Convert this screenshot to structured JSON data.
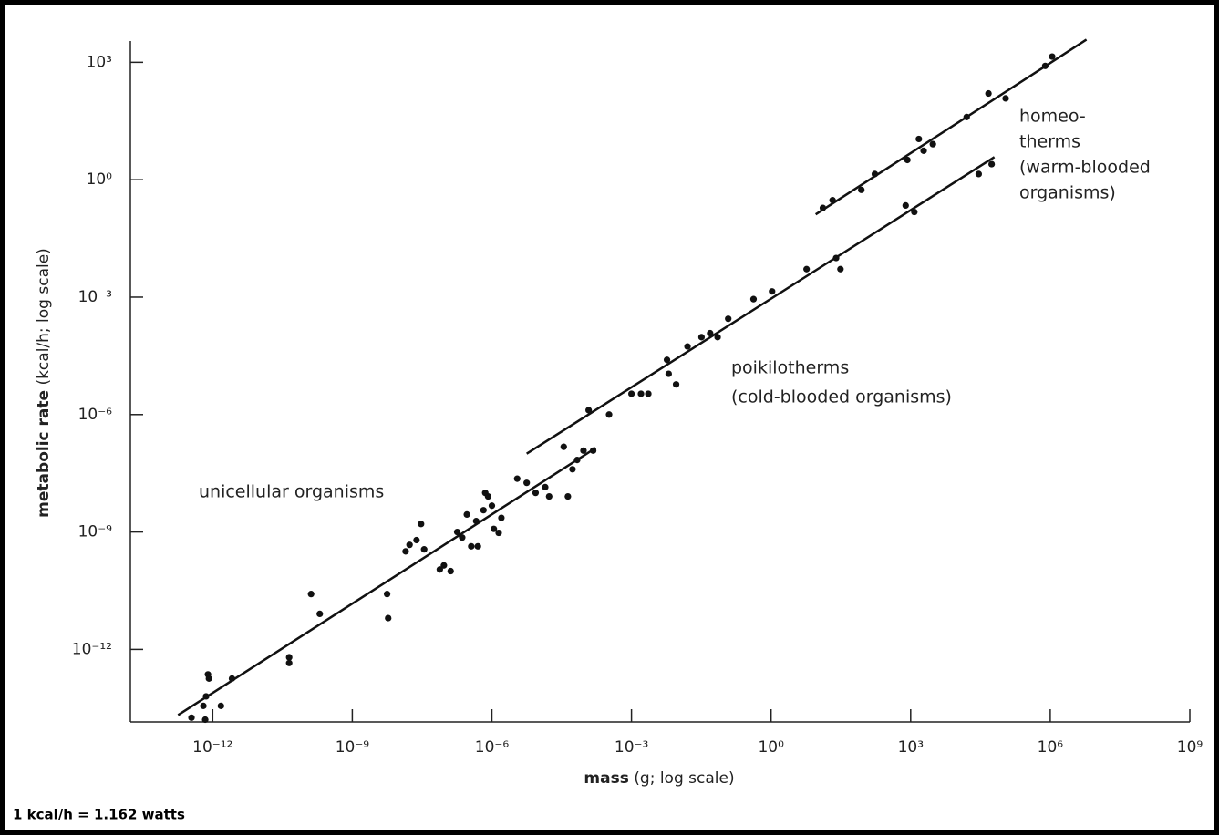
{
  "chart_data": {
    "type": "scatter",
    "xlabel": [
      "mass",
      "(g; log scale)"
    ],
    "ylabel": [
      "metabolic rate",
      "(kcal/h; log scale)"
    ],
    "footnote": "1 kcal/h = 1.162 watts",
    "annotations": [
      "unicellular organisms",
      "poikilotherms",
      "(cold-blooded organisms)",
      "homeo-",
      "therms",
      "(warm-blooded",
      "organisms)"
    ],
    "log_x": true,
    "log_y": true,
    "color": "#111111",
    "xlim": [
      1.7e-14,
      1000000000.0
    ],
    "ylim": [
      1.4e-14,
      3500
    ],
    "xticks": [
      {
        "value": 1e-12,
        "label": "10⁻¹²"
      },
      {
        "value": 1e-09,
        "label": "10⁻⁹"
      },
      {
        "value": 1e-06,
        "label": "10⁻⁶"
      },
      {
        "value": 0.001,
        "label": "10⁻³"
      },
      {
        "value": 1,
        "label": "10⁰"
      },
      {
        "value": 1000,
        "label": "10³"
      },
      {
        "value": 1000000.0,
        "label": "10⁶"
      },
      {
        "value": 1000000000.0,
        "label": "10⁹"
      }
    ],
    "yticks": [
      {
        "value": 1e-12,
        "label": "10⁻¹²"
      },
      {
        "value": 1e-09,
        "label": "10⁻⁹"
      },
      {
        "value": 1e-06,
        "label": "10⁻⁶"
      },
      {
        "value": 0.001,
        "label": "10⁻³"
      },
      {
        "value": 1,
        "label": "10⁰"
      },
      {
        "value": 1000,
        "label": "10³"
      }
    ],
    "x": [
      3.5e-13,
      6.9e-13,
      6.3e-13,
      7.2e-13,
      7.9e-13,
      8.3e-13,
      1.5e-12,
      2.6e-12,
      4.4e-11,
      4.4e-11,
      1.3e-10,
      2e-10,
      5.6e-09,
      5.9e-09,
      1.4e-08,
      1.7e-08,
      2.4e-08,
      3e-08,
      3.5e-08,
      7.6e-08,
      9.3e-08,
      1.3e-07,
      1.8e-07,
      2.3e-07,
      2.9e-07,
      3.6e-07,
      4.6e-07,
      5e-07,
      6.6e-07,
      7.2e-07,
      8.3e-07,
      1e-06,
      1.1e-06,
      1.4e-06,
      1.6e-06,
      3.5e-06,
      5.6e-06,
      8.7e-06,
      1.4e-05,
      1.7e-05,
      3.5e-05,
      4.3e-05,
      5.4e-05,
      6.8e-05,
      9.3e-05,
      0.00012,
      0.00015,
      0.00033,
      0.001,
      0.0016,
      0.0023,
      0.0058,
      0.0063,
      0.0091,
      0.016,
      0.032,
      0.049,
      0.071,
      0.12,
      0.42,
      1.05,
      5.8,
      25,
      31,
      780,
      1200,
      29000,
      55000,
      13,
      21,
      87,
      170,
      850,
      1500,
      1900,
      3000,
      16000,
      47000,
      110000,
      780000,
      1100000
    ],
    "values": [
      1.8e-14,
      1.6e-14,
      3.6e-14,
      6.3e-14,
      2.3e-13,
      1.8e-13,
      3.6e-14,
      1.8e-13,
      6.3e-13,
      4.5e-13,
      2.6e-11,
      8.1e-12,
      2.6e-11,
      6.3e-12,
      3.2e-10,
      4.7e-10,
      6.2e-10,
      1.6e-09,
      3.6e-10,
      1.1e-10,
      1.4e-10,
      1e-10,
      1e-09,
      7.2e-10,
      2.8e-09,
      4.3e-10,
      1.9e-09,
      4.3e-10,
      3.6e-09,
      1e-08,
      8.1e-09,
      4.7e-09,
      1.2e-09,
      9.5e-10,
      2.3e-09,
      2.3e-08,
      1.8e-08,
      1e-08,
      1.4e-08,
      8.1e-09,
      1.5e-07,
      8.1e-09,
      4e-08,
      6.9e-08,
      1.2e-07,
      1.3e-06,
      1.2e-07,
      1e-06,
      3.4e-06,
      3.4e-06,
      3.4e-06,
      2.5e-05,
      1.1e-05,
      5.9e-06,
      5.5e-05,
      9.5e-05,
      0.00012,
      9.5e-05,
      0.00028,
      0.00089,
      0.0014,
      0.0052,
      0.01,
      0.0052,
      0.22,
      0.15,
      1.4,
      2.5,
      0.19,
      0.3,
      0.55,
      1.4,
      3.2,
      11,
      5.5,
      8.1,
      40,
      160,
      120,
      810,
      1400
    ],
    "fit_lines": [
      {
        "x": [
          1.8e-13,
          0.00017
        ],
        "values": [
          2.1e-14,
          1.4e-07
        ]
      },
      {
        "x": [
          5.6e-06,
          63000
        ],
        "values": [
          1e-07,
          3.8
        ]
      },
      {
        "x": [
          9.1,
          6000000.0
        ],
        "values": [
          0.13,
          3800
        ]
      }
    ]
  }
}
